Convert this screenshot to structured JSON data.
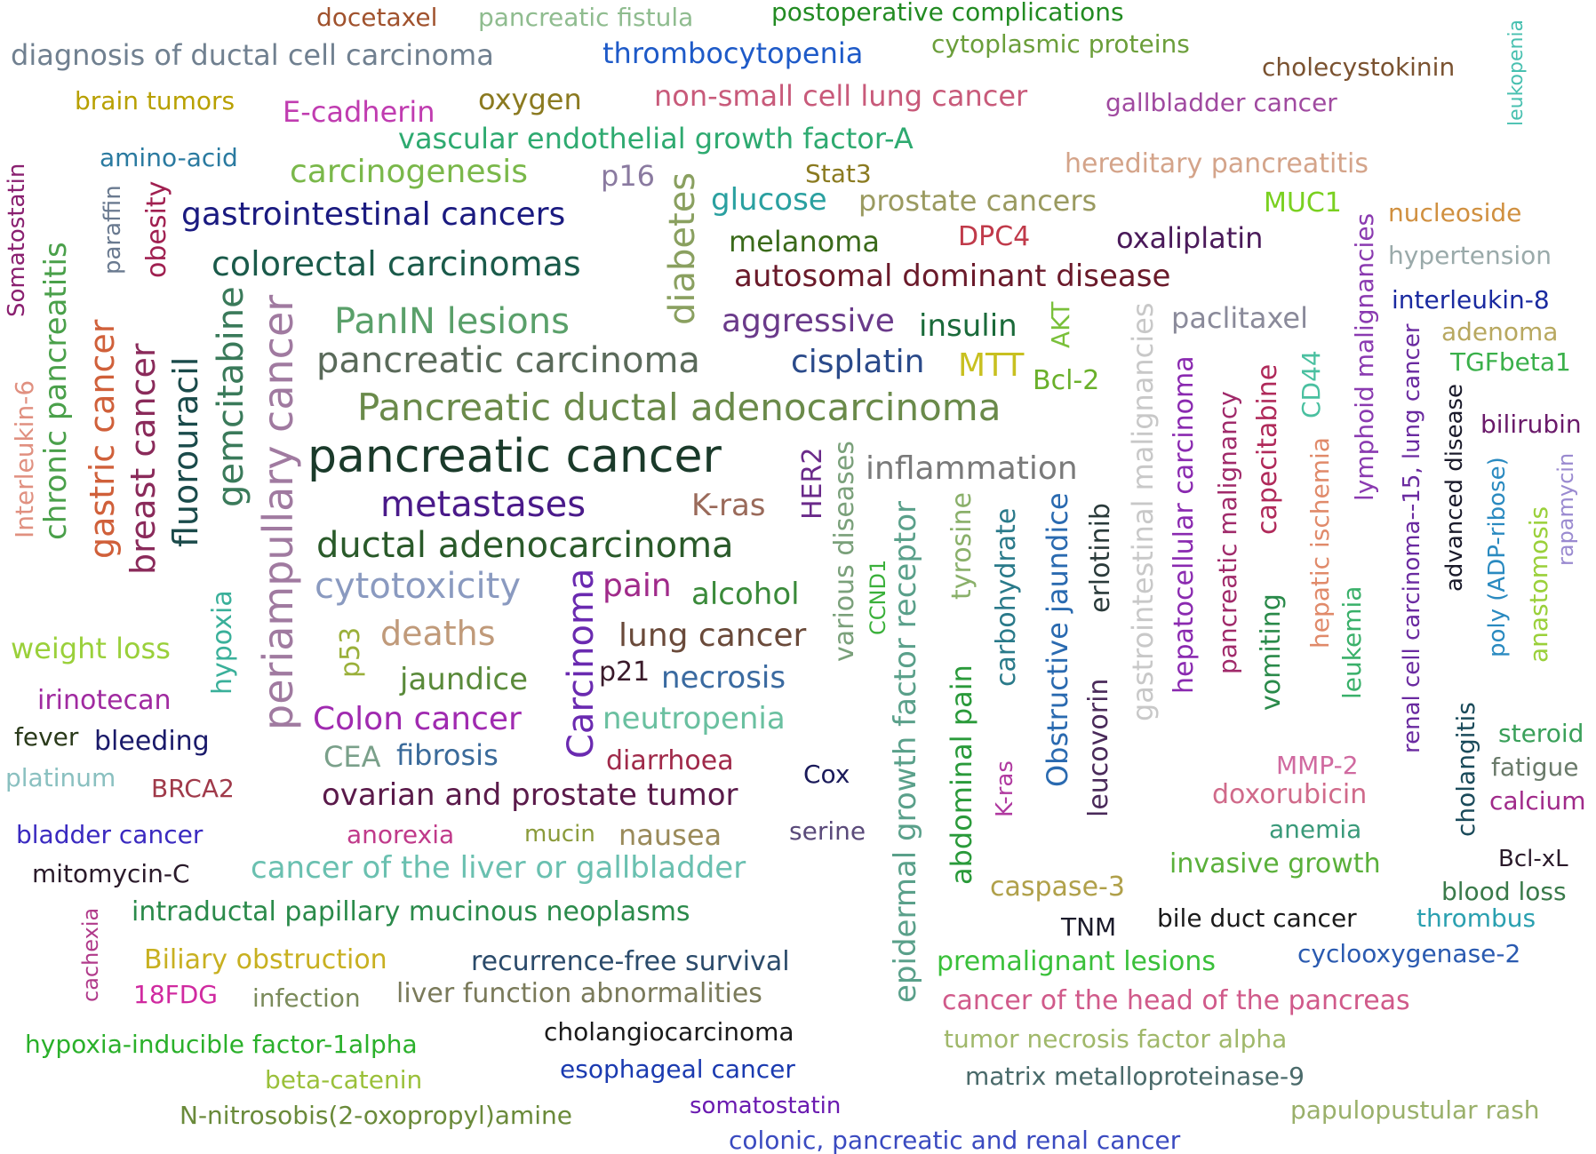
{
  "words": [
    {
      "text": "docetaxel",
      "color": "#a0522d"
    },
    {
      "text": "pancreatic fistula",
      "color": "#8fbc8f"
    },
    {
      "text": "postoperative complications",
      "color": "#228b22"
    },
    {
      "text": "diagnosis of ductal cell carcinoma",
      "color": "#708090"
    },
    {
      "text": "thrombocytopenia",
      "color": "#1e5ac8"
    },
    {
      "text": "cytoplasmic proteins",
      "color": "#6b9e3a"
    },
    {
      "text": "cholecystokinin",
      "color": "#7a5230"
    },
    {
      "text": "leukopenia",
      "color": "#48c0b0"
    },
    {
      "text": "brain tumors",
      "color": "#b8a000"
    },
    {
      "text": "E-cadherin",
      "color": "#c03cb0"
    },
    {
      "text": "oxygen",
      "color": "#8b7a20"
    },
    {
      "text": "non-small cell lung cancer",
      "color": "#c85a7a"
    },
    {
      "text": "gallbladder cancer",
      "color": "#a04aa0"
    },
    {
      "text": "vascular endothelial growth factor-A",
      "color": "#2eaa70"
    },
    {
      "text": "amino-acid",
      "color": "#2a7aa0"
    },
    {
      "text": "hereditary pancreatitis",
      "color": "#d4a48a"
    },
    {
      "text": "carcinogenesis",
      "color": "#7ab84a"
    },
    {
      "text": "p16",
      "color": "#8a7aa0"
    },
    {
      "text": "Stat3",
      "color": "#8a7a20"
    },
    {
      "text": "Somatostatin",
      "color": "#8a2070"
    },
    {
      "text": "paraffin",
      "color": "#6a7a90"
    },
    {
      "text": "obesity",
      "color": "#a02050"
    },
    {
      "text": "gastrointestinal cancers",
      "color": "#1a1a80"
    },
    {
      "text": "diabetes",
      "color": "#8aa060"
    },
    {
      "text": "glucose",
      "color": "#2aa0a0"
    },
    {
      "text": "prostate cancers",
      "color": "#9a9a60"
    },
    {
      "text": "MUC1",
      "color": "#7ad020"
    },
    {
      "text": "nucleoside",
      "color": "#d09040"
    },
    {
      "text": "colorectal carcinomas",
      "color": "#1a5a4a"
    },
    {
      "text": "melanoma",
      "color": "#3a6a1a"
    },
    {
      "text": "DPC4",
      "color": "#c03a4a"
    },
    {
      "text": "oxaliplatin",
      "color": "#4a1a5a"
    },
    {
      "text": "hypertension",
      "color": "#9aaaaa"
    },
    {
      "text": "chronic pancreatitis",
      "color": "#4aa04a"
    },
    {
      "text": "autosomal dominant disease",
      "color": "#6a1a2a"
    },
    {
      "text": "lymphoid malignancies",
      "color": "#8a3ab0"
    },
    {
      "text": "interleukin-8",
      "color": "#1a2aa0"
    },
    {
      "text": "Interleukin-6",
      "color": "#e09080"
    },
    {
      "text": "gastric cancer",
      "color": "#d0603a"
    },
    {
      "text": "breast cancer",
      "color": "#8a2a5a"
    },
    {
      "text": "fluorouracil",
      "color": "#1a4a4a"
    },
    {
      "text": "gemcitabine",
      "color": "#3a7a5a"
    },
    {
      "text": "periampullary cancer",
      "color": "#a07aa0"
    },
    {
      "text": "PanIN lesions",
      "color": "#5aa06a"
    },
    {
      "text": "aggressive",
      "color": "#6a3a8a"
    },
    {
      "text": "insulin",
      "color": "#1a6a3a"
    },
    {
      "text": "AKT",
      "color": "#7ac03a"
    },
    {
      "text": "gastrointestinal malignancies",
      "color": "#c8c8c8"
    },
    {
      "text": "paclitaxel",
      "color": "#8a8a9a"
    },
    {
      "text": "adenoma",
      "color": "#b8a860"
    },
    {
      "text": "renal cell carcinoma--15, lung cancer",
      "color": "#6a2aa0"
    },
    {
      "text": "pancreatic carcinoma",
      "color": "#5a6a5a"
    },
    {
      "text": "cisplatin",
      "color": "#2a4a8a"
    },
    {
      "text": "MTT",
      "color": "#c8c020"
    },
    {
      "text": "Bcl-2",
      "color": "#6ab02a"
    },
    {
      "text": "hepatocellular carcinoma",
      "color": "#8a2ab0"
    },
    {
      "text": "pancreatic malignancy",
      "color": "#a02a6a"
    },
    {
      "text": "capecitabine",
      "color": "#b02a5a"
    },
    {
      "text": "CD44",
      "color": "#4ac0a0"
    },
    {
      "text": "TGFbeta1",
      "color": "#3ab04a"
    },
    {
      "text": "advanced disease",
      "color": "#1a1a2a"
    },
    {
      "text": "bilirubin",
      "color": "#6a1a6a"
    },
    {
      "text": "Pancreatic ductal adenocarcinoma",
      "color": "#6a8a4a"
    },
    {
      "text": "hepatic ischemia",
      "color": "#e08a6a"
    },
    {
      "text": "poly (ADP-ribose)",
      "color": "#2a8ac0"
    },
    {
      "text": "rapamycin",
      "color": "#9a8ad0"
    },
    {
      "text": "pancreatic cancer",
      "color": "#1a3a2a"
    },
    {
      "text": "HER2",
      "color": "#6a2a8a"
    },
    {
      "text": "inflammation",
      "color": "#7a7a7a"
    },
    {
      "text": "various diseases",
      "color": "#7aa07a"
    },
    {
      "text": "metastases",
      "color": "#4a1a8a"
    },
    {
      "text": "K-ras",
      "color": "#9a6a5a"
    },
    {
      "text": "epidermal growth factor receptor",
      "color": "#5aa08a"
    },
    {
      "text": "tyrosine",
      "color": "#8ab06a"
    },
    {
      "text": "carbohydrate",
      "color": "#2a7a8a"
    },
    {
      "text": "Obstructive jaundice",
      "color": "#2a6ab0"
    },
    {
      "text": "erlotinib",
      "color": "#2a3a3a"
    },
    {
      "text": "anastomosis",
      "color": "#9ad03a"
    },
    {
      "text": "ductal adenocarcinoma",
      "color": "#2a5a2a"
    },
    {
      "text": "CCND1",
      "color": "#3ab03a"
    },
    {
      "text": "cytotoxicity",
      "color": "#8a9ac0"
    },
    {
      "text": "Carcinoma",
      "color": "#6a2ab0"
    },
    {
      "text": "pain",
      "color": "#a02a8a"
    },
    {
      "text": "alcohol",
      "color": "#3a8a3a"
    },
    {
      "text": "leukemia",
      "color": "#3ab06a"
    },
    {
      "text": "vomiting",
      "color": "#2a8a4a"
    },
    {
      "text": "weight loss",
      "color": "#9ad03a"
    },
    {
      "text": "hypoxia",
      "color": "#3ab09a"
    },
    {
      "text": "p53",
      "color": "#9ab03a"
    },
    {
      "text": "deaths",
      "color": "#c09a7a"
    },
    {
      "text": "lung cancer",
      "color": "#6a4a3a"
    },
    {
      "text": "abdominal pain",
      "color": "#2a9a3a"
    },
    {
      "text": "leucovorin",
      "color": "#4a2a5a"
    },
    {
      "text": "irinotecan",
      "color": "#a02aa0"
    },
    {
      "text": "jaundice",
      "color": "#5a8a3a"
    },
    {
      "text": "p21",
      "color": "#3a1a2a"
    },
    {
      "text": "necrosis",
      "color": "#3a6aa0"
    },
    {
      "text": "steroid",
      "color": "#3aa05a"
    },
    {
      "text": "fever",
      "color": "#2a3a1a"
    },
    {
      "text": "Colon cancer",
      "color": "#a02ab0"
    },
    {
      "text": "neutropenia",
      "color": "#6ac0a0"
    },
    {
      "text": "cholangitis",
      "color": "#1a4a5a"
    },
    {
      "text": "bleeding",
      "color": "#1a1a6a"
    },
    {
      "text": "MMP-2",
      "color": "#d06aa0"
    },
    {
      "text": "fatigue",
      "color": "#6a7a6a"
    },
    {
      "text": "CEA",
      "color": "#7aa08a"
    },
    {
      "text": "fibrosis",
      "color": "#3a6a9a"
    },
    {
      "text": "diarrhoea",
      "color": "#a02a4a"
    },
    {
      "text": "platinum",
      "color": "#8ac0c0"
    },
    {
      "text": "K-ras",
      "color": "#b03aa0"
    },
    {
      "text": "Cox",
      "color": "#1a1a5a"
    },
    {
      "text": "BRCA2",
      "color": "#a03a4a"
    },
    {
      "text": "ovarian and prostate tumor",
      "color": "#5a1a4a"
    },
    {
      "text": "doxorubicin",
      "color": "#d06a8a"
    },
    {
      "text": "calcium",
      "color": "#a02a8a"
    },
    {
      "text": "anemia",
      "color": "#3a9a7a"
    },
    {
      "text": "bladder cancer",
      "color": "#3a2ac0"
    },
    {
      "text": "anorexia",
      "color": "#c03a8a"
    },
    {
      "text": "mucin",
      "color": "#8a9a3a"
    },
    {
      "text": "nausea",
      "color": "#9a8a5a"
    },
    {
      "text": "serine",
      "color": "#5a4a7a"
    },
    {
      "text": "Bcl-xL",
      "color": "#2a1a2a"
    },
    {
      "text": "invasive growth",
      "color": "#5ab03a"
    },
    {
      "text": "mitomycin-C",
      "color": "#2a1a2a"
    },
    {
      "text": "cancer of the liver or gallbladder",
      "color": "#6ac0b0"
    },
    {
      "text": "caspase-3",
      "color": "#b0a04a"
    },
    {
      "text": "blood loss",
      "color": "#3a7a4a"
    },
    {
      "text": "intraductal papillary mucinous neoplasms",
      "color": "#2a8a4a"
    },
    {
      "text": "TNM",
      "color": "#1a1a2a"
    },
    {
      "text": "bile duct cancer",
      "color": "#1a1a1a"
    },
    {
      "text": "thrombus",
      "color": "#2aa0b0"
    },
    {
      "text": "cachexia",
      "color": "#b03a8a"
    },
    {
      "text": "Biliary obstruction",
      "color": "#c8b020"
    },
    {
      "text": "recurrence-free survival",
      "color": "#2a4a6a"
    },
    {
      "text": "premalignant lesions",
      "color": "#3ac03a"
    },
    {
      "text": "cyclooxygenase-2",
      "color": "#2a5ab0"
    },
    {
      "text": "18FDG",
      "color": "#d02aa0"
    },
    {
      "text": "infection",
      "color": "#7a8a5a"
    },
    {
      "text": "liver function abnormalities",
      "color": "#7a7a5a"
    },
    {
      "text": "cancer of the head of the pancreas",
      "color": "#d05a8a"
    },
    {
      "text": "cholangiocarcinoma",
      "color": "#1a1a1a"
    },
    {
      "text": "hypoxia-inducible factor-1alpha",
      "color": "#2ab02a"
    },
    {
      "text": "tumor necrosis factor alpha",
      "color": "#a0b86a"
    },
    {
      "text": "esophageal cancer",
      "color": "#1a3ab0"
    },
    {
      "text": "beta-catenin",
      "color": "#9ac03a"
    },
    {
      "text": "matrix metalloproteinase-9",
      "color": "#4a6a6a"
    },
    {
      "text": "somatostatin",
      "color": "#6a1ab0"
    },
    {
      "text": "papulopustular rash",
      "color": "#9ab06a"
    },
    {
      "text": "N-nitrosobis(2-oxopropyl)amine",
      "color": "#6a8a3a"
    },
    {
      "text": "colonic, pancreatic and renal cancer",
      "color": "#3a4ac0"
    }
  ]
}
